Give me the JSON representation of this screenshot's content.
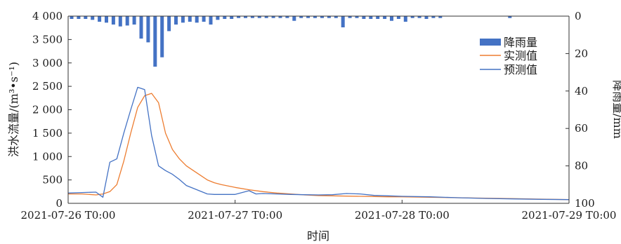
{
  "chart_data": {
    "type": "bar+line",
    "xlabel": "时间",
    "ylabel_left": "洪水流量/(m³•s⁻¹)",
    "ylabel_right": "降雨量/mm",
    "x_ticks": [
      "2021-07-26 T0:00",
      "2021-07-27 T0:00",
      "2021-07-28 T0:00",
      "2021-07-29 T0:00"
    ],
    "xlim_hours": [
      0,
      72
    ],
    "ylim_left": [
      0,
      4000
    ],
    "ylim_right_inverted": [
      0,
      100
    ],
    "yticks_left": [
      "0",
      "500",
      "1 000",
      "1 500",
      "2 000",
      "2 500",
      "3 000",
      "3 500",
      "4 000"
    ],
    "yticks_right": [
      "0",
      "20",
      "40",
      "60",
      "80",
      "100"
    ],
    "legend_position": "top-right",
    "colors": {
      "rainfall": "#4472c4",
      "observed": "#ed7d31",
      "predicted": "#4472c4"
    },
    "series": [
      {
        "name": "降雨量",
        "kind": "bar",
        "axis": "right",
        "x_hours": [
          0,
          1,
          2,
          3,
          4,
          5,
          6,
          7,
          8,
          9,
          10,
          11,
          12,
          13,
          14,
          15,
          16,
          17,
          18,
          19,
          20,
          21,
          22,
          23,
          24,
          25,
          26,
          27,
          28,
          29,
          30,
          31,
          32,
          33,
          34,
          35,
          36,
          37,
          38,
          39,
          40,
          41,
          42,
          43,
          44,
          45,
          46,
          47,
          48,
          49,
          50,
          51,
          52,
          53,
          63
        ],
        "values": [
          1.5,
          1.5,
          1.5,
          2,
          3,
          3.5,
          4.5,
          5.5,
          5,
          4.5,
          12,
          14,
          27,
          22,
          8,
          4.5,
          3.5,
          3,
          3.5,
          3,
          4.5,
          2,
          1.5,
          1.5,
          1,
          1,
          1,
          1,
          1,
          1,
          1,
          1,
          2.5,
          1,
          1,
          1,
          1,
          1,
          1,
          6,
          1,
          1,
          1.5,
          1.5,
          1.5,
          1.5,
          2.5,
          1.5,
          3,
          1,
          1,
          1.5,
          1,
          1,
          1
        ]
      },
      {
        "name": "实测值",
        "kind": "line",
        "axis": "left",
        "x_hours": [
          0,
          2,
          4,
          5,
          6,
          7,
          8,
          9,
          10,
          11,
          12,
          13,
          14,
          15,
          16,
          17,
          18,
          19,
          20,
          21,
          22,
          24,
          26,
          28,
          30,
          32,
          34,
          36,
          38,
          40,
          42,
          44,
          46,
          48,
          52,
          56,
          60,
          64,
          68,
          72
        ],
        "values": [
          200,
          200,
          180,
          200,
          250,
          400,
          900,
          1500,
          2050,
          2300,
          2350,
          2150,
          1500,
          1150,
          950,
          800,
          700,
          600,
          500,
          440,
          400,
          340,
          290,
          250,
          220,
          200,
          180,
          165,
          160,
          155,
          150,
          145,
          140,
          140,
          130,
          120,
          110,
          100,
          90,
          80
        ]
      },
      {
        "name": "预测值",
        "kind": "line",
        "axis": "left",
        "x_hours": [
          0,
          2,
          4,
          5,
          6,
          7,
          8,
          9,
          10,
          11,
          12,
          13,
          14,
          15,
          16,
          17,
          18,
          19,
          20,
          21,
          22,
          24,
          26,
          27,
          28,
          30,
          32,
          34,
          36,
          38,
          40,
          42,
          44,
          46,
          48,
          52,
          56,
          60,
          64,
          68,
          72
        ],
        "values": [
          220,
          230,
          240,
          130,
          880,
          950,
          1500,
          2000,
          2480,
          2430,
          1450,
          800,
          700,
          620,
          510,
          380,
          320,
          260,
          200,
          190,
          190,
          190,
          270,
          200,
          210,
          200,
          190,
          185,
          180,
          185,
          210,
          200,
          170,
          160,
          150,
          140,
          120,
          105,
          95,
          85,
          80
        ]
      }
    ]
  }
}
